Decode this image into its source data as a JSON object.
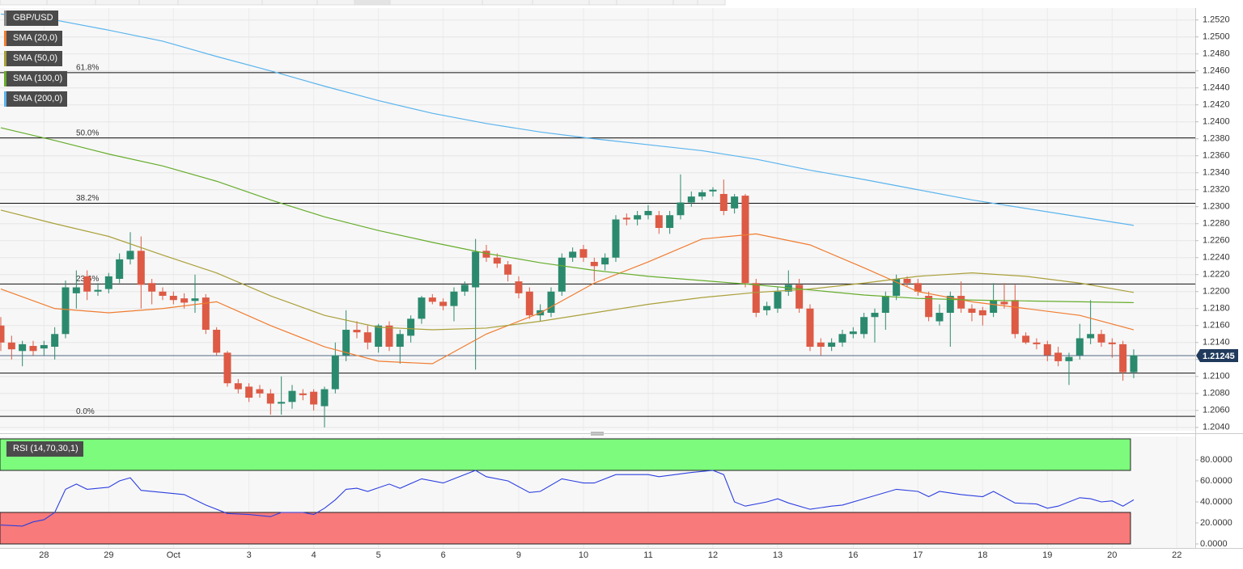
{
  "chart_data": [
    {
      "type": "candlestick",
      "symbol": "GBP/USD",
      "categories": [
        null,
        null,
        null,
        null,
        "28",
        null,
        null,
        null,
        null,
        null,
        "29",
        null,
        null,
        null,
        null,
        null,
        "Oct",
        null,
        null,
        null,
        null,
        null,
        null,
        "3",
        null,
        null,
        null,
        null,
        null,
        "4",
        null,
        null,
        null,
        null,
        null,
        "5",
        null,
        null,
        null,
        null,
        null,
        "6",
        null,
        null,
        null,
        null,
        null,
        null,
        "9",
        null,
        null,
        null,
        null,
        null,
        "10",
        null,
        null,
        null,
        null,
        null,
        "11",
        null,
        null,
        null,
        null,
        null,
        "12",
        null,
        null,
        null,
        null,
        null,
        "13",
        null,
        null,
        null,
        null,
        null,
        null,
        "16",
        null,
        null,
        null,
        null,
        null,
        "17",
        null,
        null,
        null,
        null,
        null,
        "18",
        null,
        null,
        null,
        null,
        null,
        "19",
        null,
        null,
        null,
        null,
        null,
        "20",
        null,
        null,
        null,
        null,
        null,
        "22"
      ],
      "open": [
        1.216,
        1.214,
        1.213,
        1.2136,
        1.2133,
        1.2135,
        1.215,
        1.2198,
        1.2218,
        1.22,
        1.2203,
        1.2215,
        1.2238,
        1.2248,
        1.221,
        1.22,
        1.2195,
        1.2192,
        1.2189,
        1.2193,
        1.2155,
        1.2128,
        1.2092,
        1.2088,
        1.2085,
        1.208,
        1.2068,
        1.207,
        1.208,
        1.2082,
        1.2065,
        1.2085,
        1.2125,
        1.2155,
        1.2152,
        1.2135,
        1.216,
        1.2135,
        1.2148,
        1.2168,
        1.2193,
        1.2188,
        1.2183,
        1.22,
        1.2205,
        1.2248,
        1.224,
        1.2232,
        1.2212,
        1.22,
        1.2172,
        1.2175,
        1.22,
        1.224,
        1.225,
        1.2235,
        1.2232,
        1.224,
        1.2287,
        1.2285,
        1.229,
        1.229,
        1.2275,
        1.229,
        1.2305,
        1.2312,
        1.2318,
        1.2315,
        1.2298,
        1.2313,
        1.221,
        1.2178,
        1.218,
        1.22,
        1.2208,
        1.218,
        1.214,
        1.2135,
        1.214,
        1.215,
        1.215,
        1.217,
        1.2175,
        1.2195,
        1.2215,
        1.221,
        1.2195,
        1.2165,
        1.2175,
        1.2195,
        1.218,
        1.2178,
        1.2175,
        1.2188,
        1.219,
        1.2148,
        1.214,
        1.2138,
        1.2128,
        1.2118,
        1.2125,
        1.2145,
        1.215,
        1.214,
        1.2138,
        1.2105,
        null,
        null,
        null,
        null
      ],
      "high": [
        1.217,
        1.2148,
        1.2142,
        1.2142,
        1.2142,
        1.2158,
        1.2213,
        1.2225,
        1.2225,
        1.221,
        1.2222,
        1.2245,
        1.227,
        1.2265,
        1.2215,
        1.2205,
        1.22,
        1.2198,
        1.222,
        1.2197,
        1.2158,
        1.213,
        1.2097,
        1.2092,
        1.209,
        1.2085,
        1.21,
        1.209,
        1.2085,
        1.2085,
        1.2088,
        1.214,
        1.2178,
        1.2165,
        1.216,
        1.2162,
        1.2165,
        1.2155,
        1.2172,
        1.2195,
        1.2197,
        1.2192,
        1.2205,
        1.2212,
        1.2262,
        1.2255,
        1.2245,
        1.2236,
        1.2218,
        1.2205,
        1.2185,
        1.2205,
        1.2245,
        1.2252,
        1.2255,
        1.224,
        1.2245,
        1.229,
        1.2292,
        1.2295,
        1.2302,
        1.2295,
        1.2295,
        1.2338,
        1.2318,
        1.232,
        1.2323,
        1.2332,
        1.2315,
        1.2315,
        1.2215,
        1.2188,
        1.2205,
        1.2225,
        1.2215,
        1.2185,
        1.2145,
        1.2145,
        1.2155,
        1.2158,
        1.2175,
        1.218,
        1.22,
        1.222,
        1.2218,
        1.2215,
        1.22,
        1.2185,
        1.22,
        1.2212,
        1.2185,
        1.2182,
        1.221,
        1.221,
        1.2208,
        1.2152,
        1.2145,
        1.2142,
        1.2135,
        1.2128,
        1.2162,
        1.219,
        1.2155,
        1.2145,
        1.2142,
        1.2132,
        null,
        null,
        null,
        null
      ],
      "low": [
        1.213,
        1.212,
        1.2112,
        1.2125,
        1.2125,
        1.212,
        1.2145,
        1.218,
        1.219,
        1.2195,
        1.2198,
        1.221,
        1.2232,
        1.218,
        1.2185,
        1.219,
        1.2185,
        1.218,
        1.2175,
        1.215,
        1.2125,
        1.2088,
        1.208,
        1.207,
        1.2075,
        1.2055,
        1.2055,
        1.2062,
        1.2072,
        1.206,
        1.204,
        1.208,
        1.2118,
        1.2145,
        1.2132,
        1.2128,
        1.213,
        1.2115,
        1.214,
        1.2162,
        1.2185,
        1.2178,
        1.2165,
        1.2195,
        1.2108,
        1.2235,
        1.2228,
        1.2212,
        1.2192,
        1.2168,
        1.2165,
        1.217,
        1.2195,
        1.2235,
        1.2235,
        1.2212,
        1.2225,
        1.2235,
        1.2278,
        1.2278,
        1.2285,
        1.2268,
        1.2268,
        1.2285,
        1.23,
        1.2308,
        1.2312,
        1.229,
        1.2292,
        1.2205,
        1.217,
        1.2172,
        1.2175,
        1.2195,
        1.2175,
        1.213,
        1.2125,
        1.213,
        1.2135,
        1.2145,
        1.2145,
        1.214,
        1.2155,
        1.219,
        1.2205,
        1.2195,
        1.2165,
        1.216,
        1.2135,
        1.2175,
        1.2165,
        1.216,
        1.217,
        1.218,
        1.2145,
        1.2138,
        1.2132,
        1.2118,
        1.2112,
        1.209,
        1.212,
        1.2138,
        1.2135,
        1.2122,
        1.2095,
        1.2098,
        null,
        null,
        null,
        null
      ],
      "close": [
        1.214,
        1.2132,
        1.2138,
        1.213,
        1.2137,
        1.215,
        1.2205,
        1.2205,
        1.22,
        1.2202,
        1.2218,
        1.2238,
        1.2248,
        1.2208,
        1.22,
        1.2195,
        1.219,
        1.2187,
        1.2192,
        1.2155,
        1.2128,
        1.2092,
        1.2085,
        1.2075,
        1.208,
        1.2068,
        1.207,
        1.2083,
        1.2078,
        1.2067,
        1.2085,
        1.2125,
        1.2155,
        1.2152,
        1.214,
        1.216,
        1.2135,
        1.215,
        1.2168,
        1.2193,
        1.2188,
        1.2183,
        1.22,
        1.2208,
        1.2247,
        1.224,
        1.2233,
        1.222,
        1.2198,
        1.2172,
        1.2178,
        1.22,
        1.224,
        1.2247,
        1.224,
        1.223,
        1.224,
        1.2285,
        1.2285,
        1.229,
        1.2295,
        1.2275,
        1.229,
        1.2305,
        1.2312,
        1.2317,
        1.232,
        1.2295,
        1.2312,
        1.221,
        1.2175,
        1.2183,
        1.22,
        1.2208,
        1.218,
        1.2135,
        1.2135,
        1.214,
        1.215,
        1.2153,
        1.217,
        1.2175,
        1.2195,
        1.2215,
        1.221,
        1.22,
        1.217,
        1.2175,
        1.2195,
        1.218,
        1.2175,
        1.2172,
        1.219,
        1.2185,
        1.215,
        1.214,
        1.2138,
        1.2125,
        1.2118,
        1.2123,
        1.2145,
        1.215,
        1.214,
        1.2138,
        1.2105,
        1.2125,
        null,
        null,
        null,
        null
      ],
      "up_color": "#2b8a6e",
      "down_color": "#dd5a45",
      "symbol_color": "#8a8a8a",
      "series": [
        {
          "name": "SMA (20,0)",
          "color": "#f07c30",
          "x": [
            0,
            5,
            10,
            15,
            20,
            25,
            30,
            35,
            40,
            45,
            50,
            55,
            60,
            65,
            70,
            75,
            80,
            85,
            90,
            95,
            100,
            105
          ],
          "values": [
            1.2203,
            1.218,
            1.2175,
            1.218,
            1.2188,
            1.216,
            1.2135,
            1.2118,
            1.2115,
            1.215,
            1.2175,
            1.221,
            1.2235,
            1.2262,
            1.2268,
            1.2255,
            1.2228,
            1.22,
            1.2188,
            1.218,
            1.2172,
            1.2155
          ]
        },
        {
          "name": "SMA (50,0)",
          "color": "#aaa03a",
          "x": [
            0,
            5,
            10,
            15,
            20,
            25,
            30,
            35,
            40,
            45,
            50,
            55,
            60,
            65,
            70,
            75,
            80,
            85,
            90,
            95,
            100,
            105
          ],
          "values": [
            1.2296,
            1.228,
            1.2265,
            1.2243,
            1.2222,
            1.2195,
            1.2172,
            1.2158,
            1.2155,
            1.2157,
            1.2165,
            1.2175,
            1.2185,
            1.2193,
            1.2199,
            1.2203,
            1.221,
            1.2218,
            1.2222,
            1.2218,
            1.221,
            1.2199
          ]
        },
        {
          "name": "SMA (100,0)",
          "color": "#66ad2c",
          "x": [
            0,
            5,
            10,
            15,
            20,
            25,
            30,
            35,
            40,
            45,
            50,
            55,
            60,
            65,
            70,
            75,
            80,
            85,
            90,
            95,
            100,
            105
          ],
          "values": [
            1.2393,
            1.2378,
            1.2362,
            1.2348,
            1.233,
            1.2308,
            1.2288,
            1.2272,
            1.2258,
            1.2245,
            1.2234,
            1.2225,
            1.2218,
            1.2213,
            1.2208,
            1.2202,
            1.2196,
            1.2192,
            1.219,
            1.2189,
            1.2188,
            1.2187
          ]
        },
        {
          "name": "SMA (200,0)",
          "color": "#5ab4ee",
          "x": [
            0,
            5,
            10,
            15,
            20,
            25,
            30,
            35,
            40,
            45,
            50,
            55,
            60,
            65,
            70,
            75,
            80,
            85,
            90,
            95,
            100,
            105
          ],
          "values": [
            1.2527,
            1.252,
            1.2508,
            1.2495,
            1.2477,
            1.246,
            1.2442,
            1.2425,
            1.241,
            1.2398,
            1.2388,
            1.238,
            1.2373,
            1.2366,
            1.2356,
            1.2343,
            1.2332,
            1.232,
            1.2308,
            1.2298,
            1.2288,
            1.2278
          ]
        }
      ],
      "ylim": [
        1.2036,
        1.2534
      ],
      "yticks": [
        {
          "value": 1.204,
          "label": "1.2040"
        },
        {
          "value": 1.206,
          "label": "1.2060"
        },
        {
          "value": 1.208,
          "label": "1.2080"
        },
        {
          "value": 1.21,
          "label": "1.2100"
        },
        {
          "value": 1.212,
          "label": "1.2120"
        },
        {
          "value": 1.214,
          "label": "1.2140"
        },
        {
          "value": 1.216,
          "label": "1.2160"
        },
        {
          "value": 1.218,
          "label": "1.2180"
        },
        {
          "value": 1.22,
          "label": "1.2200"
        },
        {
          "value": 1.222,
          "label": "1.2220"
        },
        {
          "value": 1.224,
          "label": "1.2240"
        },
        {
          "value": 1.226,
          "label": "1.2260"
        },
        {
          "value": 1.228,
          "label": "1.2280"
        },
        {
          "value": 1.23,
          "label": "1.2300"
        },
        {
          "value": 1.232,
          "label": "1.2320"
        },
        {
          "value": 1.234,
          "label": "1.2340"
        },
        {
          "value": 1.236,
          "label": "1.2360"
        },
        {
          "value": 1.238,
          "label": "1.2380"
        },
        {
          "value": 1.24,
          "label": "1.2400"
        },
        {
          "value": 1.242,
          "label": "1.2420"
        },
        {
          "value": 1.244,
          "label": "1.2440"
        },
        {
          "value": 1.246,
          "label": "1.2460"
        },
        {
          "value": 1.248,
          "label": "1.2480"
        },
        {
          "value": 1.25,
          "label": "1.2500"
        },
        {
          "value": 1.252,
          "label": "1.2520"
        }
      ],
      "grid": true,
      "last_price": 1.21245,
      "fib_levels": [
        {
          "ratio": "61.8%",
          "price": 1.2458
        },
        {
          "ratio": "50.0%",
          "price": 1.2381
        },
        {
          "ratio": "38.2%",
          "price": 1.2304
        },
        {
          "ratio": "23.6%",
          "price": 1.2209
        },
        {
          "ratio": "0.0%",
          "price": 1.2053
        }
      ],
      "reference_lines": [
        1.2104
      ]
    },
    {
      "type": "line",
      "title": "RSI (14,70,30,1)",
      "color": "#2c3fe0",
      "x": [
        0,
        2,
        3,
        4,
        5,
        6,
        7,
        8,
        10,
        11,
        12,
        13,
        15,
        17,
        19,
        21,
        23,
        25,
        26,
        28,
        29,
        30,
        31,
        32,
        33,
        34,
        36,
        37,
        39,
        41,
        42,
        44,
        45,
        47,
        49,
        50,
        52,
        53,
        54,
        55,
        57,
        60,
        61,
        64,
        66,
        67,
        68,
        69,
        71,
        72,
        73,
        75,
        77,
        78,
        80,
        83,
        85,
        86,
        87,
        89,
        91,
        92,
        94,
        96,
        97,
        98,
        100,
        101,
        102,
        103,
        104,
        105
      ],
      "values": [
        18,
        17,
        21,
        23,
        30,
        52,
        57,
        52,
        54,
        60,
        63,
        51,
        49,
        47,
        37,
        29,
        28,
        26,
        30,
        30,
        28,
        34,
        42,
        52,
        53,
        50,
        57,
        53,
        62,
        58,
        62,
        70,
        64,
        60,
        49,
        50,
        62,
        60,
        58,
        58,
        66,
        66,
        64,
        68,
        70,
        66,
        40,
        36,
        40,
        43,
        39,
        33,
        36,
        37,
        43,
        52,
        50,
        45,
        50,
        47,
        45,
        50,
        39,
        38,
        34,
        36,
        44,
        43,
        40,
        41,
        36,
        42
      ],
      "ylim": [
        0,
        100
      ],
      "yticks": [
        {
          "value": 0,
          "label": "0.0000"
        },
        {
          "value": 20,
          "label": "20.0000"
        },
        {
          "value": 40,
          "label": "40.0000"
        },
        {
          "value": 60,
          "label": "60.0000"
        },
        {
          "value": 80,
          "label": "80.0000"
        }
      ],
      "overbought": 70,
      "oversold": 30,
      "overbought_color": "#7cfb7c",
      "oversold_color": "#f87a7a"
    }
  ]
}
